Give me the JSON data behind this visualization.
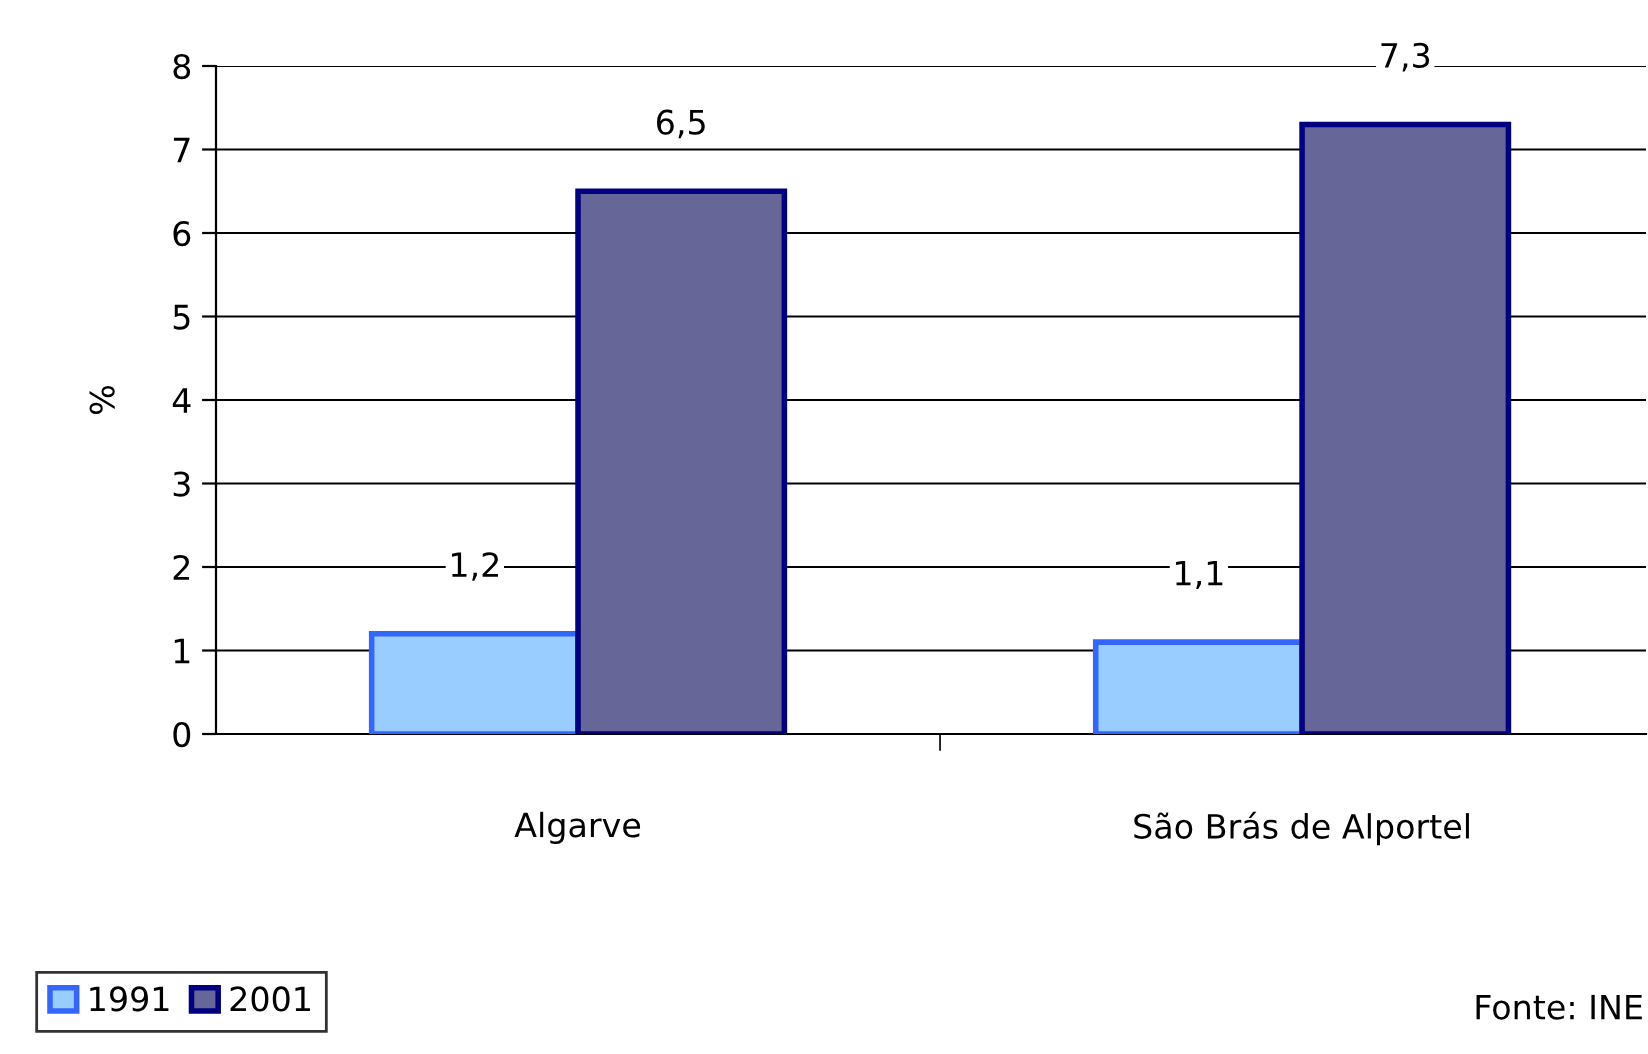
{
  "chart_data": {
    "type": "bar",
    "ylabel": "%",
    "categories": [
      "Algarve",
      "São Brás de Alportel"
    ],
    "series": [
      {
        "name": "1991",
        "color": "#99ccff",
        "values": [
          1.2,
          1.1
        ],
        "value_labels": [
          "1,2",
          "1,1"
        ]
      },
      {
        "name": "2001",
        "color": "#666699",
        "values": [
          6.5,
          7.3
        ],
        "value_labels": [
          "6,5",
          "7,3"
        ]
      }
    ],
    "ylim": [
      0,
      8
    ],
    "yticks": [
      0,
      1,
      2,
      3,
      4,
      5,
      6,
      7,
      8
    ],
    "grid": "y",
    "legend": "bottom left",
    "annotations": [
      "Fonte: INE"
    ]
  }
}
